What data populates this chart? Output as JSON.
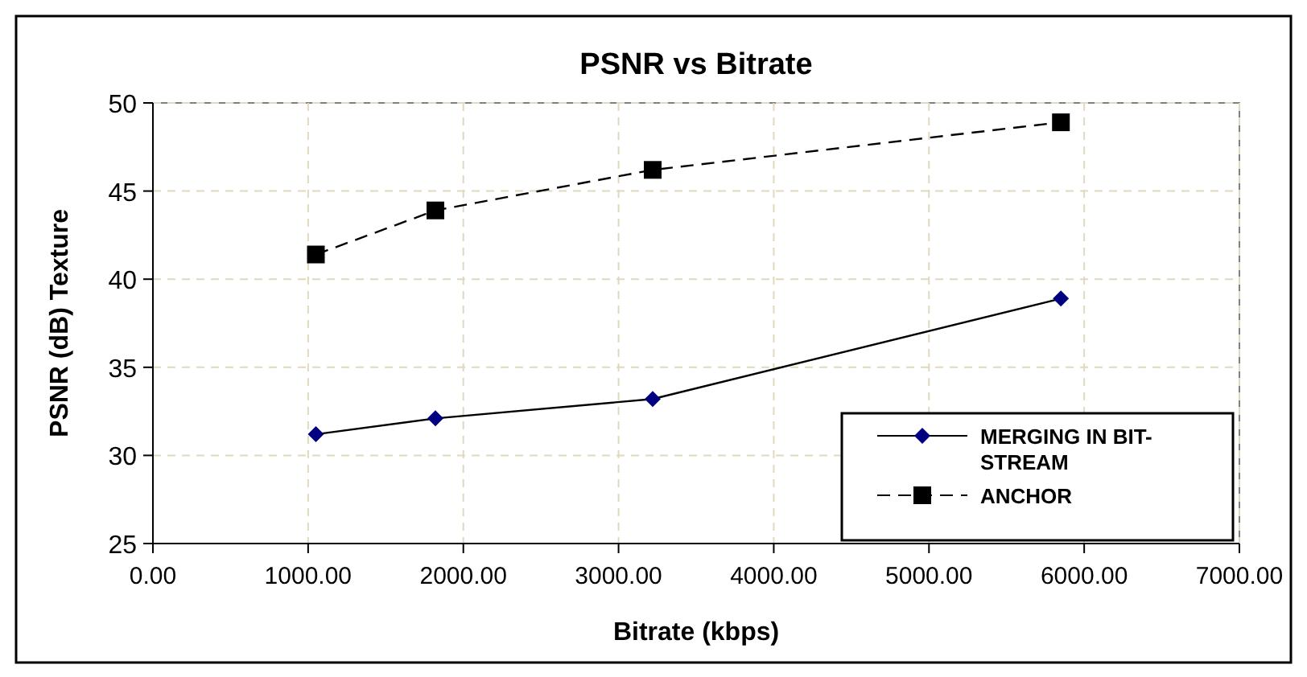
{
  "chart_data": {
    "type": "line",
    "title": "PSNR vs Bitrate",
    "xlabel": "Bitrate (kbps)",
    "ylabel": "PSNR (dB) Texture",
    "x": [
      1050,
      1820,
      3220,
      5850
    ],
    "series": [
      {
        "name": "MERGING IN BIT-STREAM",
        "color": "#000080",
        "values": [
          31.2,
          32.1,
          33.2,
          38.9
        ],
        "marker": "diamond",
        "line_style": "solid"
      },
      {
        "name": "ANCHOR",
        "color": "#000000",
        "values": [
          41.4,
          43.9,
          46.2,
          48.9
        ],
        "marker": "square",
        "line_style": "dashed"
      }
    ],
    "xlim": [
      0,
      7000
    ],
    "xticks": [
      {
        "value": 0,
        "label": "0.00"
      },
      {
        "value": 1000,
        "label": "1000.00"
      },
      {
        "value": 2000,
        "label": "2000.00"
      },
      {
        "value": 3000,
        "label": "3000.00"
      },
      {
        "value": 4000,
        "label": "4000.00"
      },
      {
        "value": 5000,
        "label": "5000.00"
      },
      {
        "value": 6000,
        "label": "6000.00"
      },
      {
        "value": 7000,
        "label": "7000.00"
      }
    ],
    "ylim": [
      25,
      50
    ],
    "yticks": [
      25,
      30,
      35,
      40,
      45,
      50
    ],
    "grid": true,
    "legend": "bottom right"
  }
}
